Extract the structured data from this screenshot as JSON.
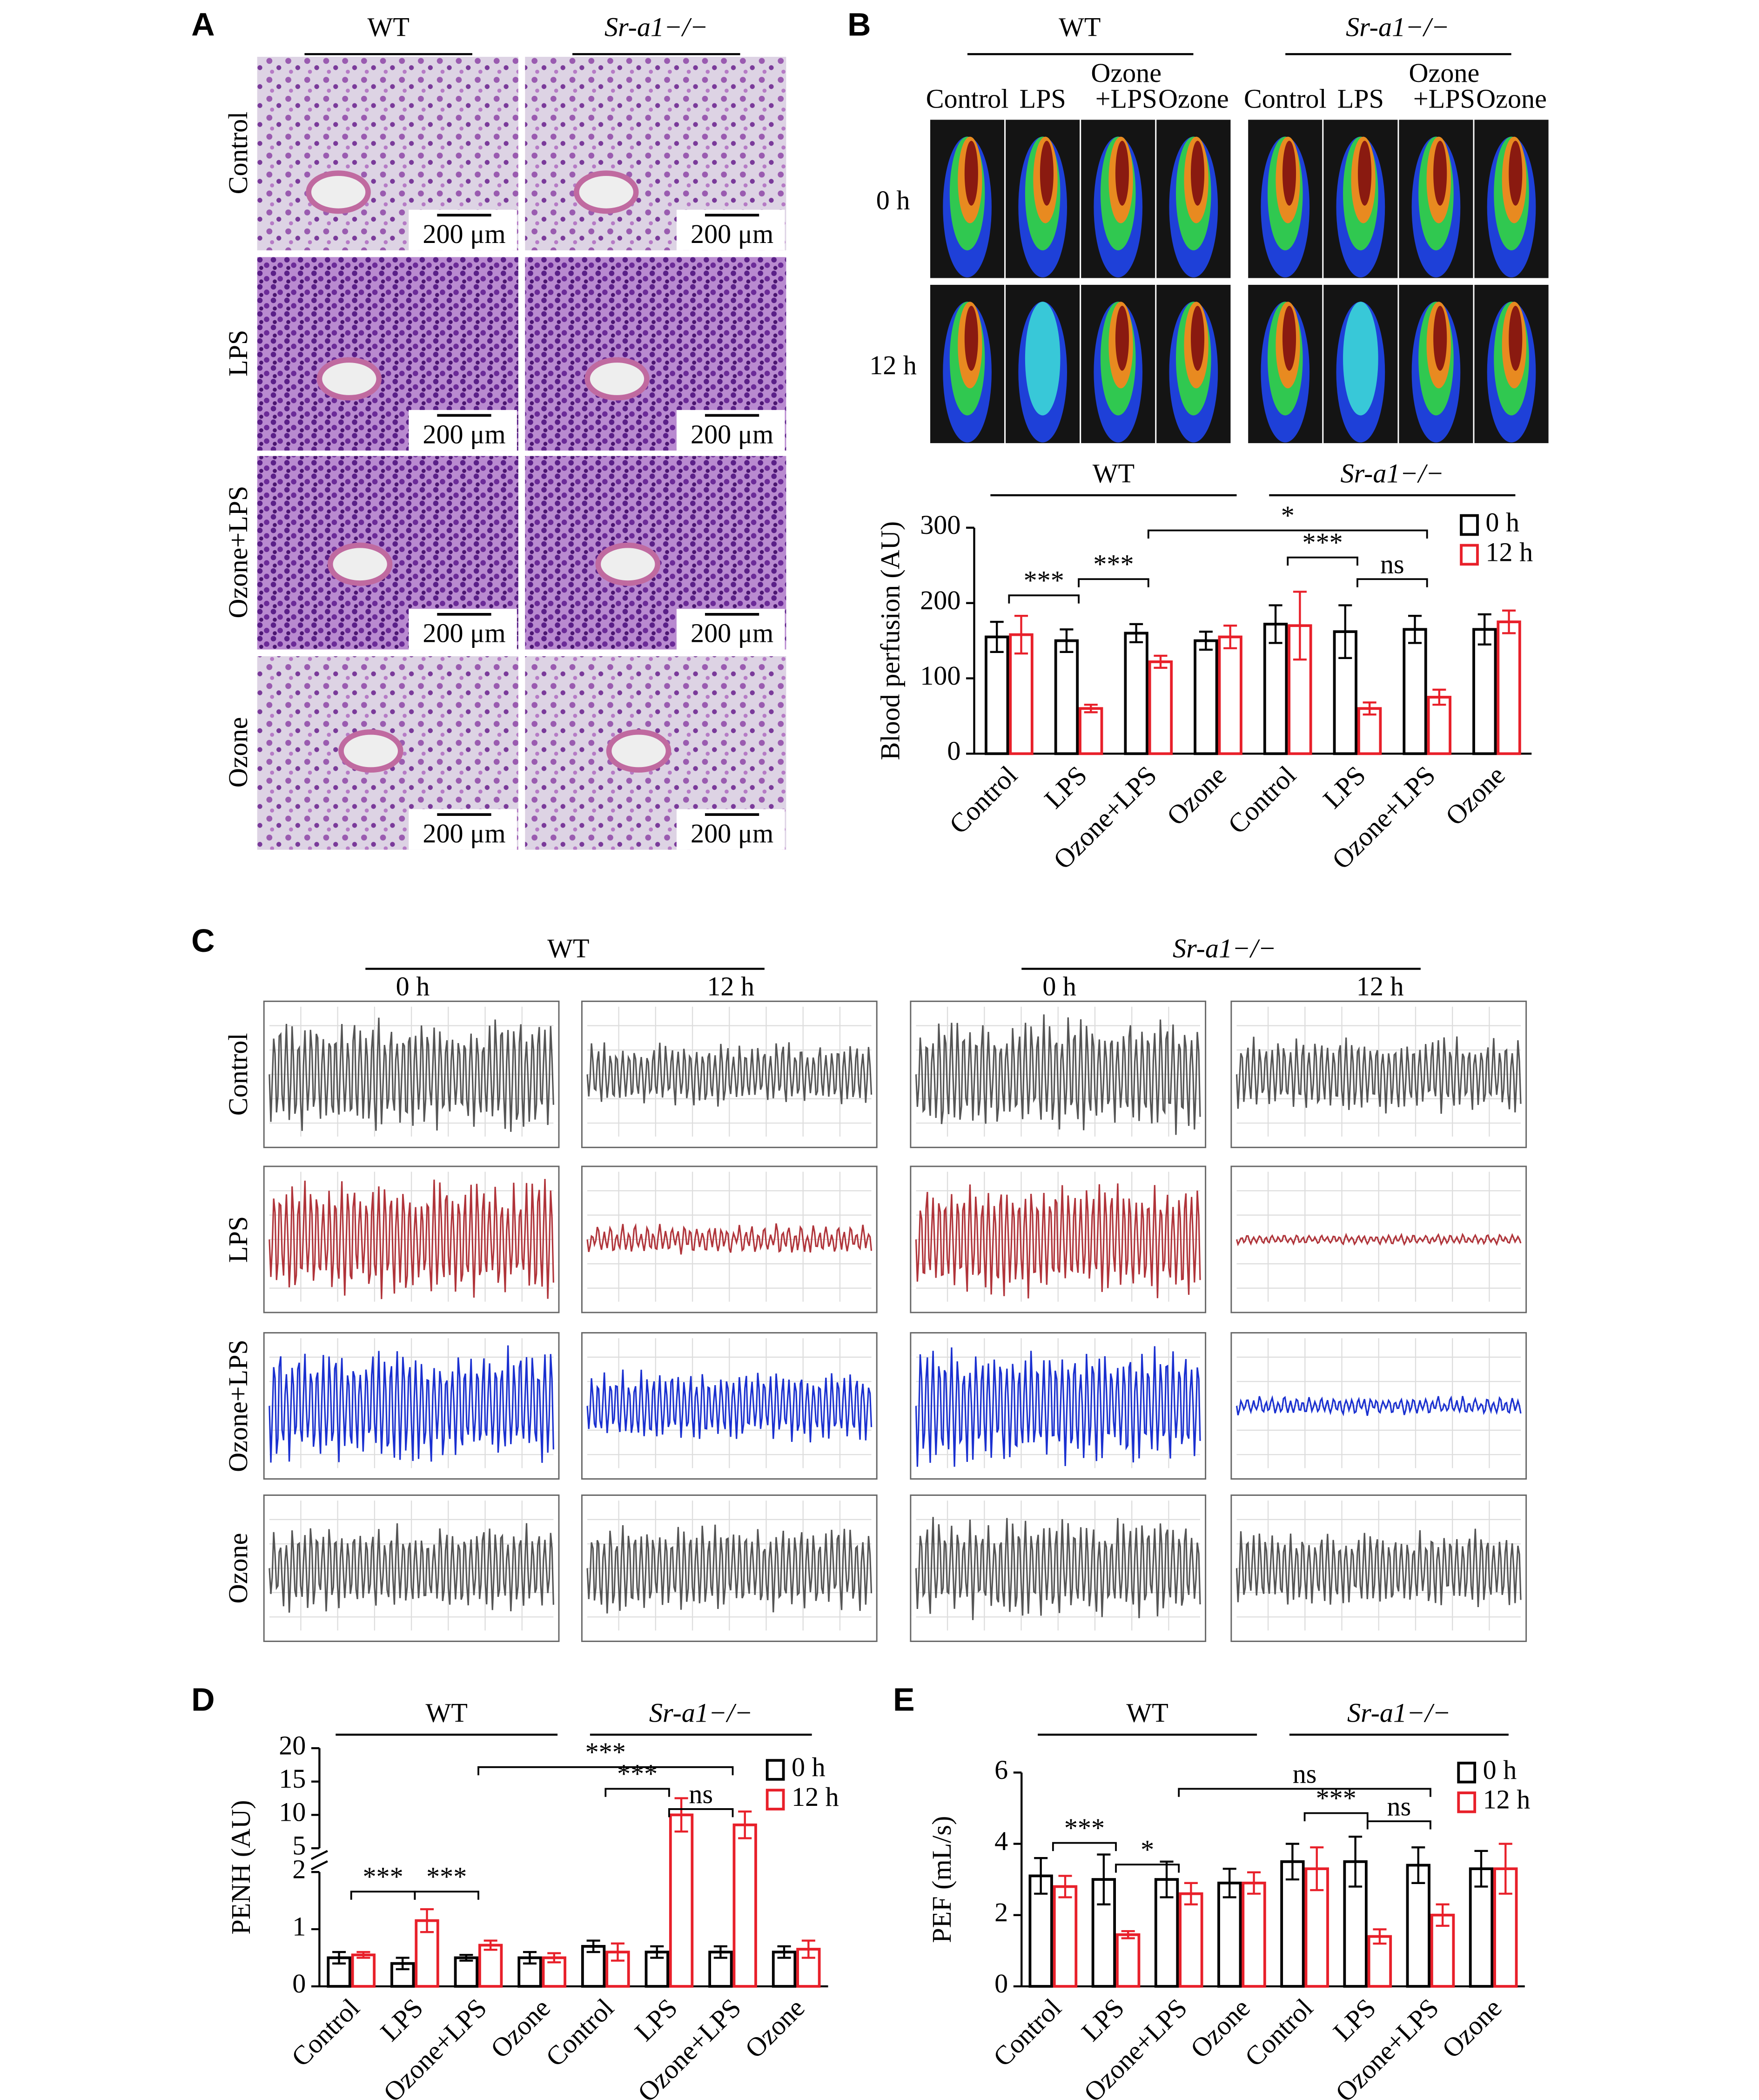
{
  "panel_a": {
    "label": "A",
    "columns": [
      "WT",
      "Sr-a1−/−"
    ],
    "rows": [
      "Control",
      "LPS",
      "Ozone+LPS",
      "Ozone"
    ],
    "scale_bar": "200 μm"
  },
  "panel_b": {
    "label": "B",
    "groups": [
      "WT",
      "Sr-a1−/−"
    ],
    "conditions": [
      "Control",
      "LPS",
      [
        "Ozone",
        "+LPS"
      ],
      "Ozone"
    ],
    "rows": [
      "0 h",
      "12 h"
    ]
  },
  "panel_c": {
    "label": "C",
    "groups": [
      "WT",
      "Sr-a1−/−"
    ],
    "times": [
      "0 h",
      "12 h"
    ],
    "rows": [
      "Control",
      "LPS",
      "Ozone+LPS",
      "Ozone"
    ]
  },
  "chart_data": [
    {
      "type": "bar",
      "ylabel": "Blood perfusion (AU)",
      "groups": [
        "WT",
        "Sr-a1−/−"
      ],
      "categories": [
        "Control",
        "LPS",
        "Ozone+LPS",
        "Ozone",
        "Control",
        "LPS",
        "Ozone+LPS",
        "Ozone"
      ],
      "series": [
        {
          "name": "0 h",
          "color": "#000000",
          "values": [
            155,
            150,
            160,
            150,
            172,
            162,
            165,
            165
          ],
          "errors": [
            20,
            15,
            12,
            12,
            25,
            35,
            18,
            20
          ]
        },
        {
          "name": "12 h",
          "color": "#e8202a",
          "values": [
            158,
            60,
            122,
            155,
            170,
            60,
            75,
            175
          ],
          "errors": [
            25,
            5,
            8,
            15,
            45,
            8,
            10,
            15
          ]
        }
      ],
      "ylim": [
        0,
        300
      ],
      "yticks": [
        0,
        100,
        200,
        300
      ],
      "legend": "upper right",
      "annotations": [
        "***",
        "***",
        "*",
        "***",
        "ns"
      ]
    },
    {
      "type": "bar",
      "label": "D",
      "ylabel": "PENH (AU)",
      "groups": [
        "WT",
        "Sr-a1−/−"
      ],
      "categories": [
        "Control",
        "LPS",
        "Ozone+LPS",
        "Ozone",
        "Control",
        "LPS",
        "Ozone+LPS",
        "Ozone"
      ],
      "series": [
        {
          "name": "0 h",
          "color": "#000000",
          "values": [
            0.5,
            0.4,
            0.5,
            0.5,
            0.7,
            0.6,
            0.6,
            0.6
          ],
          "errors": [
            0.1,
            0.1,
            0.05,
            0.1,
            0.1,
            0.1,
            0.1,
            0.1
          ]
        },
        {
          "name": "12 h",
          "color": "#e8202a",
          "values": [
            0.55,
            1.15,
            0.72,
            0.5,
            0.6,
            10,
            8.5,
            0.65
          ],
          "errors": [
            0.05,
            0.2,
            0.08,
            0.08,
            0.15,
            2.5,
            2,
            0.15
          ]
        }
      ],
      "ylim": [
        0,
        20
      ],
      "ybreak": [
        2,
        5
      ],
      "yticks": [
        0,
        1,
        2,
        5,
        10,
        15,
        20
      ],
      "legend": "upper right",
      "annotations": [
        "***",
        "***",
        "ns",
        "***",
        "***"
      ]
    },
    {
      "type": "bar",
      "label": "E",
      "ylabel": "PEF (mL/s)",
      "groups": [
        "WT",
        "Sr-a1−/−"
      ],
      "categories": [
        "Control",
        "LPS",
        "Ozone+LPS",
        "Ozone",
        "Control",
        "LPS",
        "Ozone+LPS",
        "Ozone"
      ],
      "series": [
        {
          "name": "0 h",
          "color": "#000000",
          "values": [
            3.1,
            3.0,
            3.0,
            2.9,
            3.5,
            3.5,
            3.4,
            3.3
          ],
          "errors": [
            0.5,
            0.7,
            0.5,
            0.4,
            0.5,
            0.7,
            0.5,
            0.5
          ]
        },
        {
          "name": "12 h",
          "color": "#e8202a",
          "values": [
            2.8,
            1.45,
            2.6,
            2.9,
            3.3,
            1.4,
            2.0,
            3.3
          ],
          "errors": [
            0.3,
            0.1,
            0.3,
            0.3,
            0.6,
            0.2,
            0.3,
            0.7
          ]
        }
      ],
      "ylim": [
        0,
        6
      ],
      "yticks": [
        0,
        2,
        4,
        6
      ],
      "legend": "upper right",
      "annotations": [
        "ns",
        "***",
        "ns",
        "***",
        "*"
      ]
    }
  ]
}
